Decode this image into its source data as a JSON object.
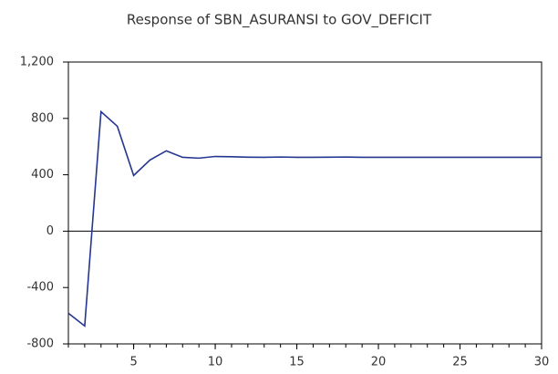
{
  "chart_data": {
    "type": "line",
    "title": "Response of SBN_ASURANSI to GOV_DEFICIT",
    "x": [
      1,
      2,
      3,
      4,
      5,
      6,
      7,
      8,
      9,
      10,
      11,
      12,
      13,
      14,
      15,
      16,
      17,
      18,
      19,
      20,
      21,
      22,
      23,
      24,
      25,
      26,
      27,
      28,
      29,
      30
    ],
    "series": [
      {
        "name": "SBN_ASURANSI",
        "color": "#24368f",
        "values": [
          -582,
          -673,
          848,
          744,
          395,
          505,
          570,
          524,
          518,
          530,
          528,
          525,
          524,
          526,
          524,
          524,
          525,
          526,
          524,
          524,
          524,
          524,
          524,
          524,
          524,
          524,
          524,
          524,
          524,
          524
        ]
      }
    ],
    "xlim": [
      1,
      30
    ],
    "xticks": [
      5,
      10,
      15,
      20,
      25,
      30
    ],
    "ylim": [
      -800,
      1200
    ],
    "yticks": [
      -800,
      -400,
      0,
      400,
      800,
      {
        "value": 1200,
        "label": "1,200"
      }
    ],
    "zero_line": true,
    "legend": false
  }
}
